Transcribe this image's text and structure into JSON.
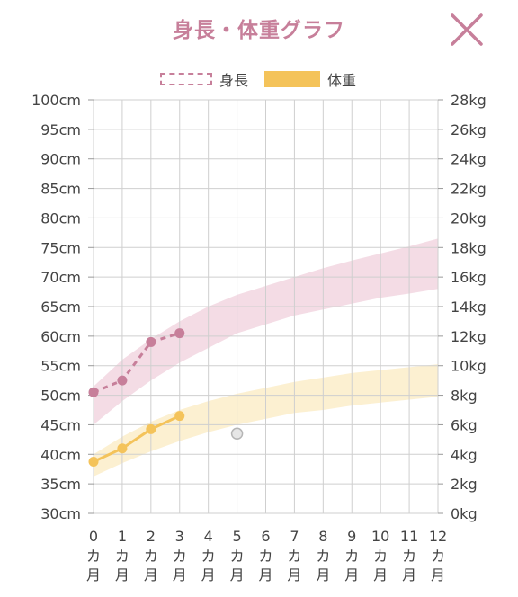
{
  "header": {
    "title": "身長・体重グラフ",
    "close_icon": "close-icon"
  },
  "legend": {
    "height_label": "身長",
    "weight_label": "体重"
  },
  "colors": {
    "height": "#c77f9a",
    "height_band": "#f2d6e0",
    "weight": "#f4c35a",
    "weight_band": "#fbedc9",
    "grid": "#cfcfcf",
    "text": "#444444"
  },
  "chart_data": {
    "type": "line",
    "title": "身長・体重グラフ",
    "x": {
      "values": [
        0,
        1,
        2,
        3,
        4,
        5,
        6,
        7,
        8,
        9,
        10,
        11,
        12
      ],
      "tick_labels": [
        "0",
        "1",
        "2",
        "3",
        "4",
        "5",
        "6",
        "7",
        "8",
        "9",
        "10",
        "11",
        "12"
      ],
      "unit_label": "カ月",
      "range": [
        0,
        12
      ]
    },
    "y_left": {
      "label": "",
      "range": [
        30,
        100
      ],
      "tick_labels": [
        "100cm",
        "95cm",
        "90cm",
        "85cm",
        "80cm",
        "75cm",
        "70cm",
        "65cm",
        "60cm",
        "55cm",
        "50cm",
        "45cm",
        "40cm",
        "35cm",
        "30cm"
      ]
    },
    "y_right": {
      "label": "",
      "range": [
        0,
        28
      ],
      "tick_labels": [
        "28kg",
        "26kg",
        "24kg",
        "22kg",
        "20kg",
        "18kg",
        "16kg",
        "14kg",
        "12kg",
        "10kg",
        "8kg",
        "6kg",
        "4kg",
        "2kg",
        "0kg"
      ]
    },
    "grid": true,
    "legend_position": "top-center",
    "series": [
      {
        "name": "身長",
        "axis": "left",
        "style": "dashed",
        "x": [
          0,
          1,
          2,
          3
        ],
        "y": [
          50.5,
          52.5,
          59,
          60.5
        ]
      },
      {
        "name": "体重",
        "axis": "right",
        "style": "solid",
        "x": [
          0,
          1,
          2,
          3
        ],
        "y": [
          3.5,
          4.4,
          5.7,
          6.6
        ]
      }
    ],
    "bands": [
      {
        "name": "身長",
        "axis": "left",
        "x": [
          0,
          1,
          2,
          3,
          4,
          5,
          6,
          7,
          8,
          9,
          10,
          11,
          12
        ],
        "lower": [
          45,
          49,
          52.5,
          55.5,
          58,
          60.5,
          62,
          63.5,
          64.5,
          65.5,
          66.5,
          67.2,
          68
        ],
        "upper": [
          51.5,
          56,
          59.5,
          62.5,
          65,
          67,
          68.5,
          70,
          71.5,
          72.8,
          74,
          75.2,
          76.5
        ]
      },
      {
        "name": "体重",
        "axis": "right",
        "x": [
          0,
          1,
          2,
          3,
          4,
          5,
          6,
          7,
          8,
          9,
          10,
          11,
          12
        ],
        "lower": [
          2.5,
          3.4,
          4.2,
          4.9,
          5.5,
          6,
          6.4,
          6.8,
          7,
          7.3,
          7.5,
          7.7,
          7.9
        ],
        "upper": [
          4,
          5.2,
          6.2,
          7,
          7.6,
          8.1,
          8.5,
          8.9,
          9.2,
          9.5,
          9.7,
          9.9,
          10.1
        ]
      }
    ],
    "markers": [
      {
        "x": 5,
        "y": 5.4,
        "axis": "right",
        "style": "gray-circle"
      }
    ]
  }
}
